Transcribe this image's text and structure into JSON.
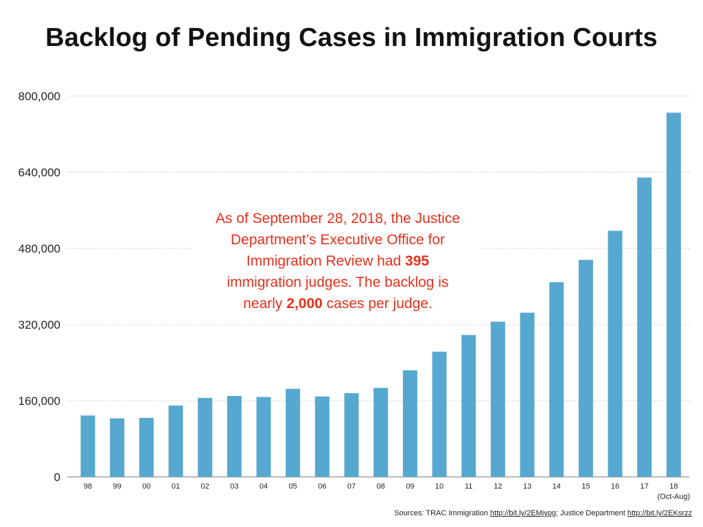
{
  "title": "Backlog of Pending Cases in Immigration Courts",
  "annotation": {
    "line1": "As of September 28, 2018, the Justice",
    "line2": "Department’s Executive Office for",
    "line3_pre": "Immigration Review had ",
    "line3_bold": "395",
    "line4": "immigration judges. The backlog is",
    "line5_pre": "nearly ",
    "line5_bold": "2,000",
    "line5_post": " cases per judge."
  },
  "sources": {
    "prefix": "Sources: TRAC Immigration ",
    "link1": "http://bit.ly/2EMjypg",
    "middle": "; Justice Department  ",
    "link2": "http://bit.ly/2EKsrzz"
  },
  "colors": {
    "bar": "#56a8d0",
    "annotation": "#e8301c",
    "grid": "#c8c8c8"
  },
  "chart_data": {
    "type": "bar",
    "categories": [
      "98",
      "99",
      "00",
      "01",
      "02",
      "03",
      "04",
      "05",
      "06",
      "07",
      "08",
      "09",
      "10",
      "11",
      "12",
      "13",
      "14",
      "15",
      "16",
      "17",
      "18"
    ],
    "category_sublabels": {
      "18": "(Oct-Aug)"
    },
    "values": [
      129000,
      123000,
      124000,
      150000,
      166000,
      170000,
      168000,
      185000,
      169000,
      176000,
      187000,
      224000,
      263000,
      298000,
      326000,
      345000,
      409000,
      456000,
      517000,
      629000,
      765000
    ],
    "yticks": [
      "0",
      "160,000",
      "320,000",
      "480,000",
      "640,000",
      "800,000"
    ],
    "ylim": [
      0,
      800000
    ],
    "grid": true,
    "xlabel": "",
    "ylabel": ""
  }
}
